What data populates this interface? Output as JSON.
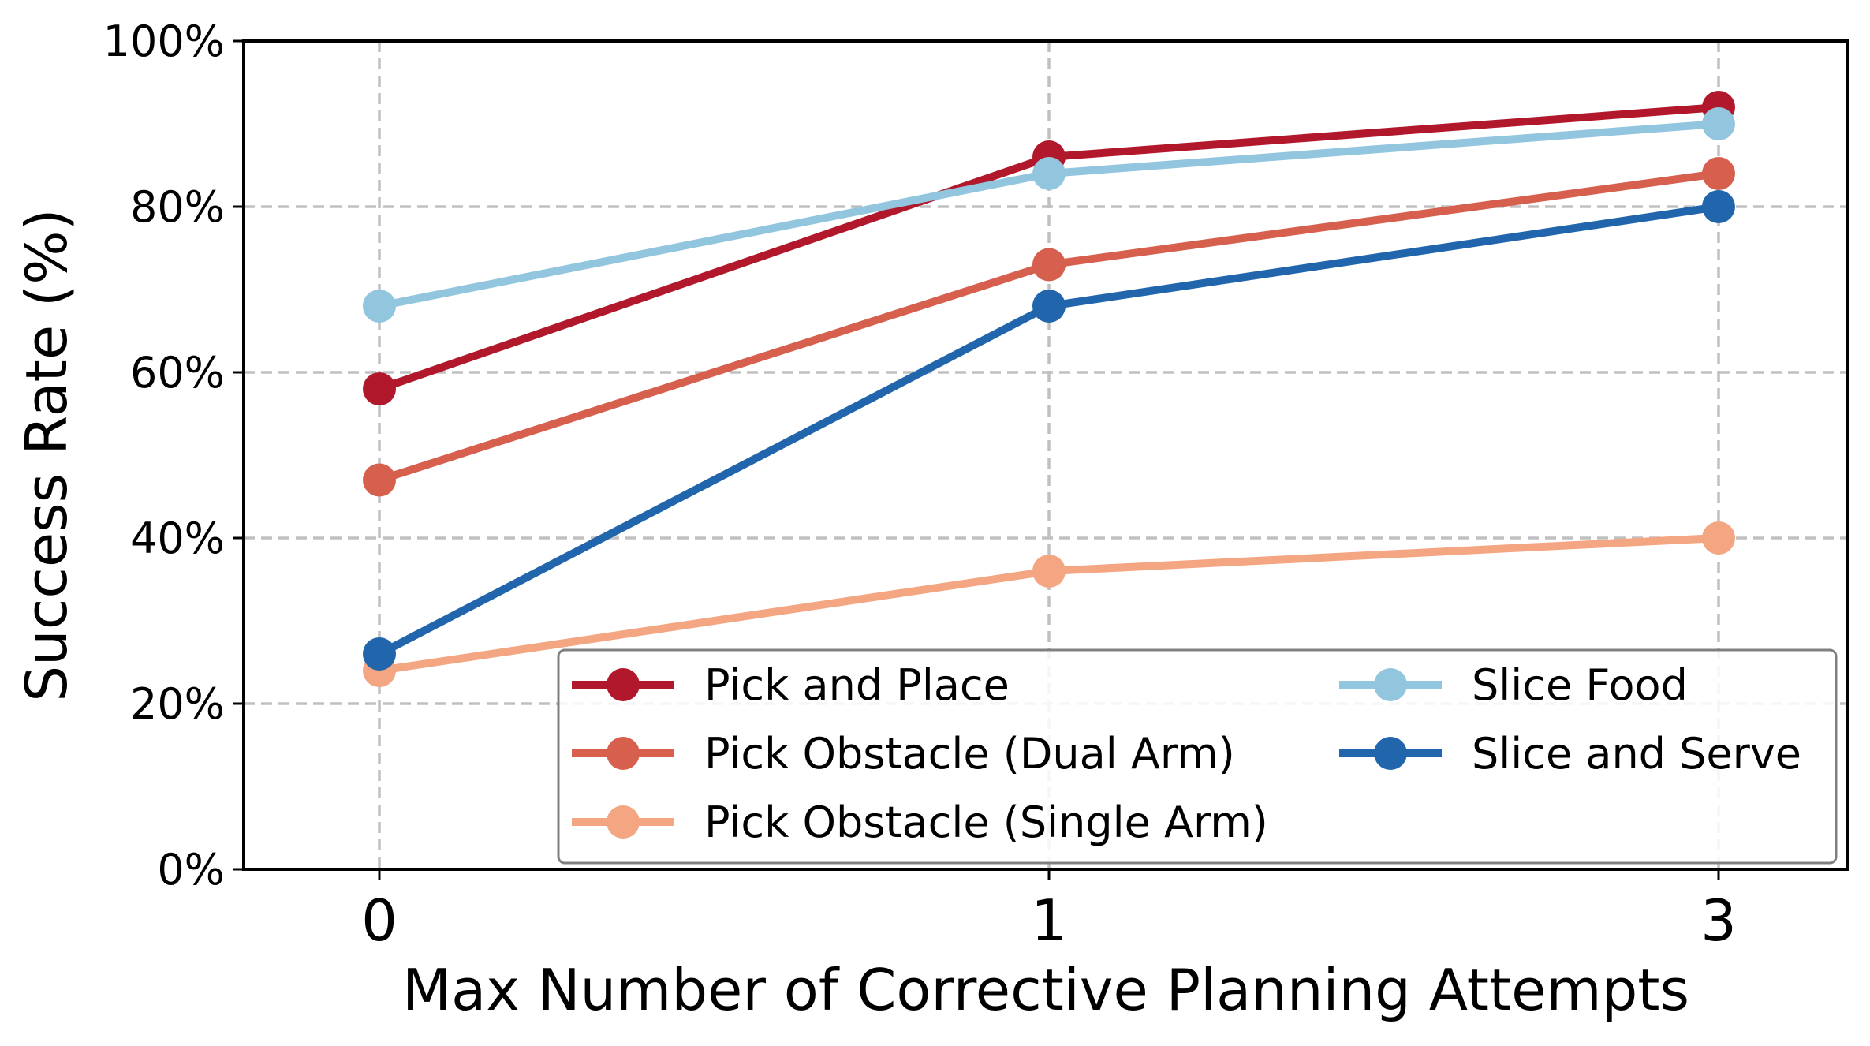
{
  "chart_data": {
    "type": "line",
    "title": "",
    "xlabel": "Max Number of Corrective Planning Attempts",
    "ylabel": "Success Rate (%)",
    "categories": [
      "0",
      "1",
      "3"
    ],
    "ylim": [
      0,
      100
    ],
    "yticks": [
      0,
      20,
      40,
      60,
      80,
      100
    ],
    "ytick_labels": [
      "0%",
      "20%",
      "40%",
      "60%",
      "80%",
      "100%"
    ],
    "grid": true,
    "legend_position": "bottom-right",
    "series": [
      {
        "name": "Pick and Place",
        "color": "#b2182b",
        "values": [
          58,
          86,
          92
        ]
      },
      {
        "name": "Pick Obstacle (Dual Arm)",
        "color": "#d6604d",
        "values": [
          47,
          73,
          84
        ]
      },
      {
        "name": "Pick Obstacle (Single Arm)",
        "color": "#f4a582",
        "values": [
          24,
          36,
          40
        ]
      },
      {
        "name": "Slice Food",
        "color": "#92c5de",
        "values": [
          68,
          84,
          90
        ]
      },
      {
        "name": "Slice and Serve",
        "color": "#2166ac",
        "values": [
          26,
          68,
          80
        ]
      }
    ]
  }
}
